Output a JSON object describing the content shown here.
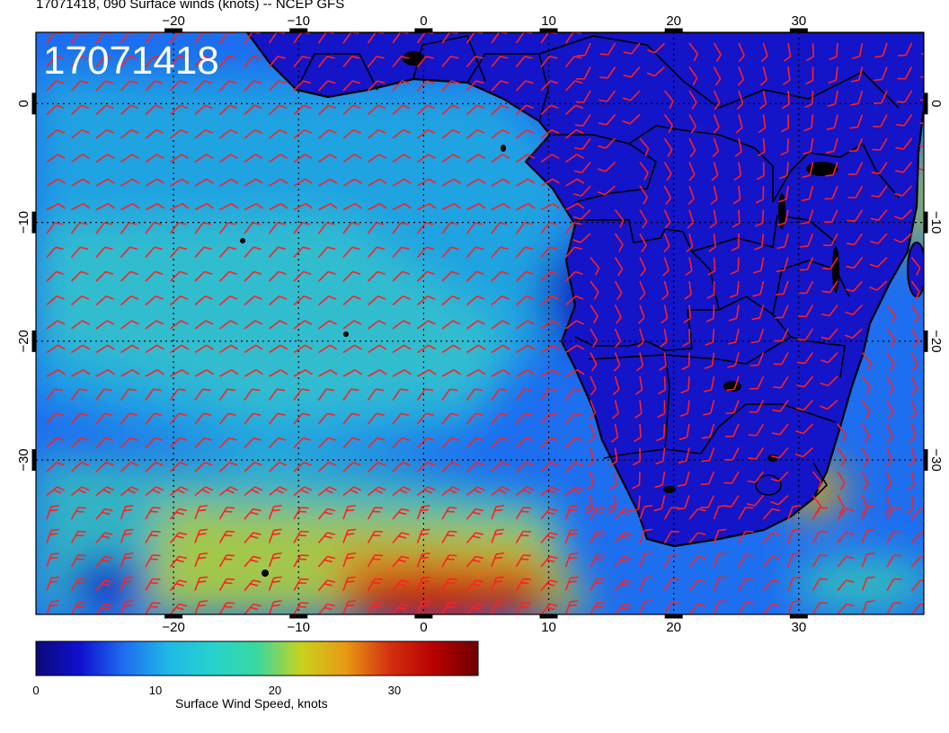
{
  "title": "17071418, 090 Surface winds (knots) -- NCEP GFS",
  "stamp": "17071418",
  "map": {
    "projection": "cylindrical equidistant",
    "lon_range": [
      -31,
      40
    ],
    "lat_range": [
      -43,
      6
    ],
    "lon_ticks": [
      -20,
      -10,
      0,
      10,
      20,
      30
    ],
    "lat_ticks": [
      0,
      -10,
      -20,
      -30
    ],
    "lon_tick_labels": [
      "−20",
      "−10",
      "0",
      "10",
      "20",
      "30"
    ],
    "lat_tick_labels": [
      "0",
      "−10",
      "−20",
      "−30"
    ],
    "graticule": "dotted every 10 degrees",
    "barb_color": "#ff2020",
    "coastline_color": "#000000"
  },
  "colorbar": {
    "label": "Surface Wind Speed, knots",
    "range": [
      0,
      37
    ],
    "ticks": [
      0,
      10,
      20,
      30
    ],
    "tick_labels": [
      "0",
      "10",
      "20",
      "30"
    ],
    "colors": [
      "#0a0a78",
      "#1010d0",
      "#1e6ef0",
      "#20b8e6",
      "#26d2cc",
      "#3ad8a0",
      "#c8d21e",
      "#e89a14",
      "#d43010",
      "#b80000",
      "#6e0000"
    ]
  }
}
